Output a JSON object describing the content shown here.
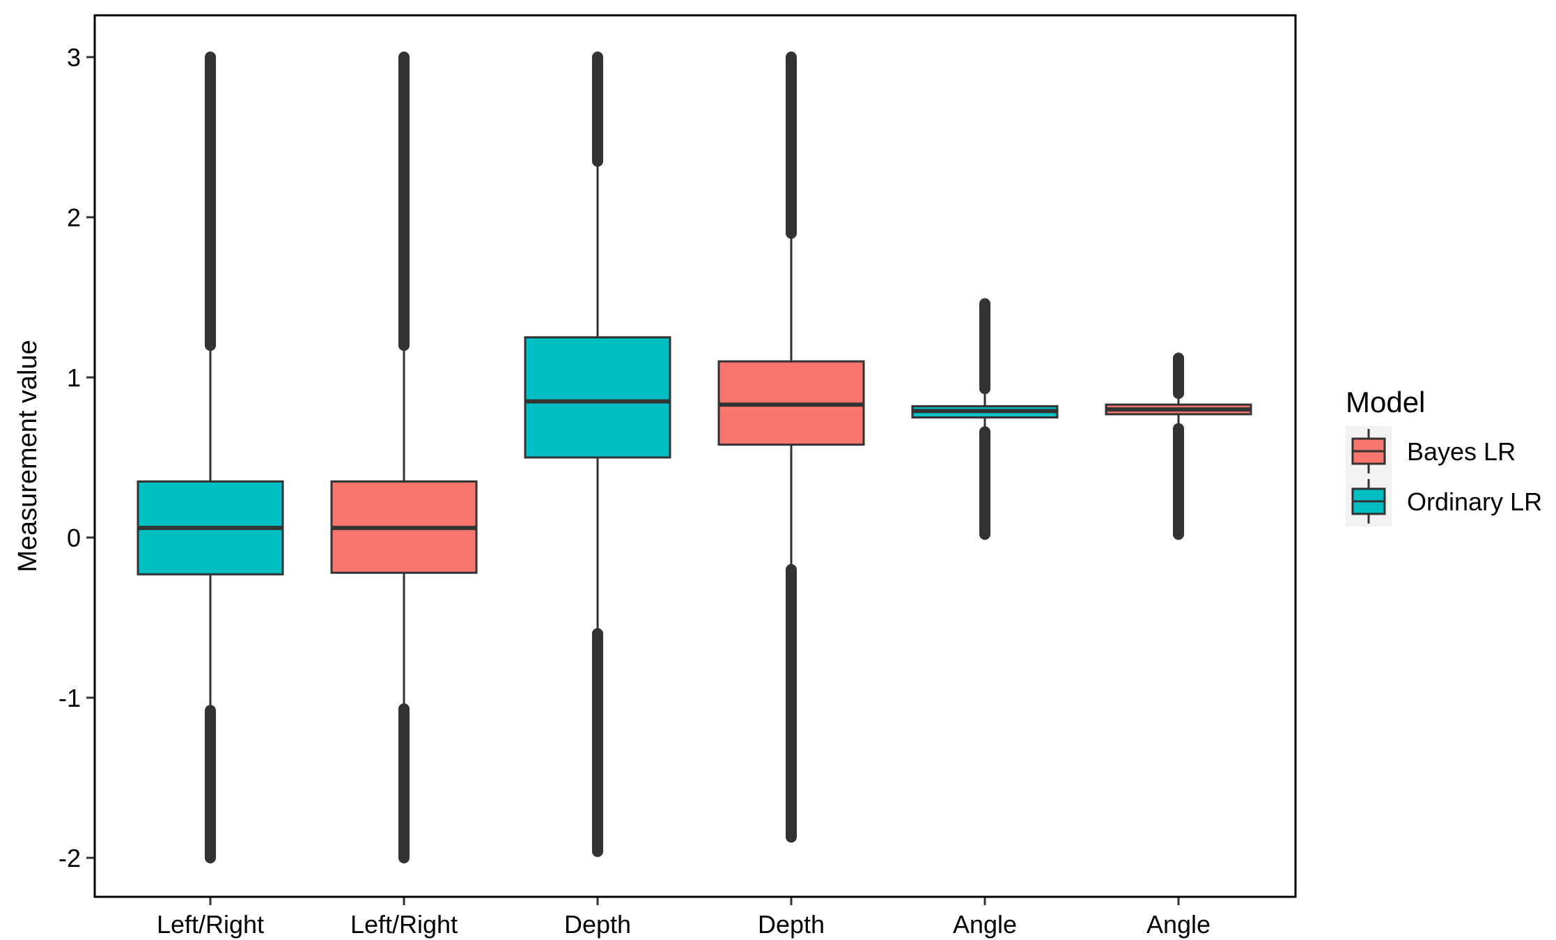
{
  "chart_data": {
    "type": "boxplot",
    "ylabel": "Measurement value",
    "ylim": [
      -2.25,
      3.25
    ],
    "yticks": [
      -2,
      -1,
      0,
      1,
      2,
      3
    ],
    "ytick_labels": [
      "-2",
      "-1",
      "0",
      "1",
      "2",
      "3"
    ],
    "categories": [
      "Left/Right",
      "Left/Right",
      "Depth",
      "Depth",
      "Angle",
      "Angle"
    ],
    "grid": false,
    "legend": {
      "title": "Model",
      "position": "right",
      "entries": [
        {
          "label": "Bayes LR",
          "color": "#F8766D"
        },
        {
          "label": "Ordinary LR",
          "color": "#00BFC4"
        }
      ]
    },
    "boxes": [
      {
        "category": "Left/Right",
        "model": "Ordinary LR",
        "color": "#00BFC4",
        "q1": -0.23,
        "median": 0.06,
        "q3": 0.35,
        "whisker_low": -1.08,
        "whisker_high": 1.2,
        "outliers_high": [
          1.2,
          3.0
        ],
        "outliers_low": [
          -2.0,
          -1.08
        ]
      },
      {
        "category": "Left/Right",
        "model": "Bayes LR",
        "color": "#F8766D",
        "q1": -0.22,
        "median": 0.06,
        "q3": 0.35,
        "whisker_low": -1.07,
        "whisker_high": 1.2,
        "outliers_high": [
          1.2,
          3.0
        ],
        "outliers_low": [
          -2.0,
          -1.07
        ]
      },
      {
        "category": "Depth",
        "model": "Ordinary LR",
        "color": "#00BFC4",
        "q1": 0.5,
        "median": 0.85,
        "q3": 1.25,
        "whisker_low": -0.6,
        "whisker_high": 2.35,
        "outliers_high": [
          2.35,
          3.0
        ],
        "outliers_low": [
          -1.96,
          -0.6
        ]
      },
      {
        "category": "Depth",
        "model": "Bayes LR",
        "color": "#F8766D",
        "q1": 0.58,
        "median": 0.83,
        "q3": 1.1,
        "whisker_low": -0.2,
        "whisker_high": 1.9,
        "outliers_high": [
          1.9,
          3.0
        ],
        "outliers_low": [
          -1.87,
          -0.2
        ]
      },
      {
        "category": "Angle",
        "model": "Ordinary LR",
        "color": "#00BFC4",
        "q1": 0.75,
        "median": 0.79,
        "q3": 0.82,
        "whisker_low": 0.66,
        "whisker_high": 0.93,
        "outliers_high": [
          0.93,
          1.46
        ],
        "outliers_low": [
          0.02,
          0.66
        ]
      },
      {
        "category": "Angle",
        "model": "Bayes LR",
        "color": "#F8766D",
        "q1": 0.77,
        "median": 0.8,
        "q3": 0.83,
        "whisker_low": 0.68,
        "whisker_high": 0.9,
        "outliers_high": [
          0.9,
          1.12
        ],
        "outliers_low": [
          0.02,
          0.68
        ]
      }
    ]
  }
}
